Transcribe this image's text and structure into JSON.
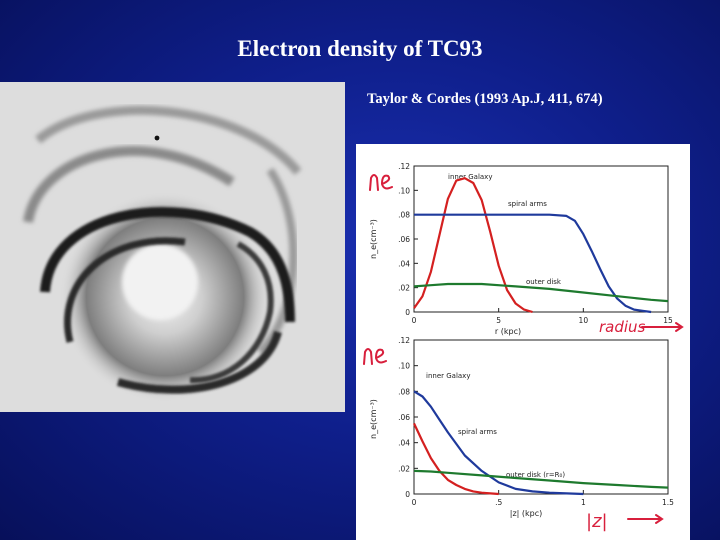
{
  "slide": {
    "title": "Electron density of TC93",
    "citation": "Taylor & Cordes (1993 Ap.J, 411, 674)"
  },
  "colors": {
    "background": "#0f1f8c",
    "text": "#ffffff",
    "red_curve": "#d42020",
    "blue_curve": "#1f3a9c",
    "green_curve": "#1e7a2e",
    "handwriting": "#d81f3c"
  },
  "handwriting": {
    "top_label": "n_e",
    "bottom_label": "n_e",
    "radius_arrow": "radius",
    "z_arrow": "|z|"
  },
  "chart_data": [
    {
      "type": "line",
      "xlabel": "r (kpc)",
      "ylabel": "n_e(cm⁻³)",
      "xlim": [
        0,
        15
      ],
      "ylim": [
        0,
        0.12
      ],
      "xticks": [
        "0",
        "5",
        "10",
        "15"
      ],
      "yticks": [
        ".12",
        ".10",
        ".08",
        ".06",
        ".04",
        ".02",
        "0"
      ],
      "grid": false,
      "annotations": [
        "inner Galaxy",
        "spiral arms",
        "outer disk"
      ],
      "series": [
        {
          "name": "inner Galaxy",
          "color": "#d42020",
          "x": [
            0,
            0.5,
            1,
            1.5,
            2,
            2.5,
            3,
            3.5,
            4,
            4.5,
            5,
            5.5,
            6,
            6.5,
            7
          ],
          "y": [
            0.003,
            0.013,
            0.033,
            0.063,
            0.093,
            0.108,
            0.11,
            0.106,
            0.092,
            0.066,
            0.038,
            0.018,
            0.007,
            0.002,
            0.0
          ]
        },
        {
          "name": "spiral arms",
          "color": "#1f3a9c",
          "x": [
            0,
            1,
            2,
            4,
            6,
            7,
            8,
            9,
            9.5,
            10,
            10.5,
            11,
            11.5,
            12,
            12.5,
            13,
            13.5,
            14
          ],
          "y": [
            0.08,
            0.08,
            0.08,
            0.08,
            0.08,
            0.08,
            0.08,
            0.079,
            0.075,
            0.064,
            0.05,
            0.035,
            0.021,
            0.011,
            0.005,
            0.002,
            0.001,
            0.0
          ]
        },
        {
          "name": "outer disk",
          "color": "#1e7a2e",
          "x": [
            0,
            1,
            2,
            3,
            4,
            6,
            8,
            10,
            12,
            14,
            15
          ],
          "y": [
            0.021,
            0.022,
            0.023,
            0.023,
            0.023,
            0.021,
            0.019,
            0.016,
            0.013,
            0.01,
            0.009
          ]
        }
      ]
    },
    {
      "type": "line",
      "xlabel": "|z| (kpc)",
      "ylabel": "n_e(cm⁻³)",
      "xlim": [
        0,
        1.5
      ],
      "ylim": [
        0,
        0.12
      ],
      "xticks": [
        "0",
        ".5",
        "1",
        "1.5"
      ],
      "yticks": [
        ".12",
        ".10",
        ".08",
        ".06",
        ".04",
        ".02",
        "0"
      ],
      "grid": false,
      "annotations": [
        "inner Galaxy",
        "spiral arms",
        "outer disk (r=R₀)"
      ],
      "series": [
        {
          "name": "inner Galaxy",
          "color": "#d42020",
          "x": [
            0,
            0.05,
            0.1,
            0.15,
            0.2,
            0.25,
            0.3,
            0.35,
            0.4,
            0.45,
            0.5
          ],
          "y": [
            0.055,
            0.041,
            0.028,
            0.018,
            0.011,
            0.007,
            0.004,
            0.002,
            0.001,
            0.0005,
            0.0
          ]
        },
        {
          "name": "spiral arms",
          "color": "#1f3a9c",
          "x": [
            0,
            0.05,
            0.1,
            0.15,
            0.2,
            0.3,
            0.4,
            0.5,
            0.6,
            0.7,
            0.8,
            0.9,
            1.0
          ],
          "y": [
            0.08,
            0.076,
            0.068,
            0.058,
            0.048,
            0.03,
            0.018,
            0.009,
            0.004,
            0.002,
            0.001,
            0.0005,
            0.0
          ]
        },
        {
          "name": "outer disk (r=R₀)",
          "color": "#1e7a2e",
          "x": [
            0,
            0.1,
            0.2,
            0.4,
            0.6,
            0.8,
            1.0,
            1.2,
            1.4,
            1.5
          ],
          "y": [
            0.018,
            0.0175,
            0.0165,
            0.0145,
            0.0125,
            0.0105,
            0.0085,
            0.007,
            0.0055,
            0.005
          ]
        }
      ]
    }
  ]
}
